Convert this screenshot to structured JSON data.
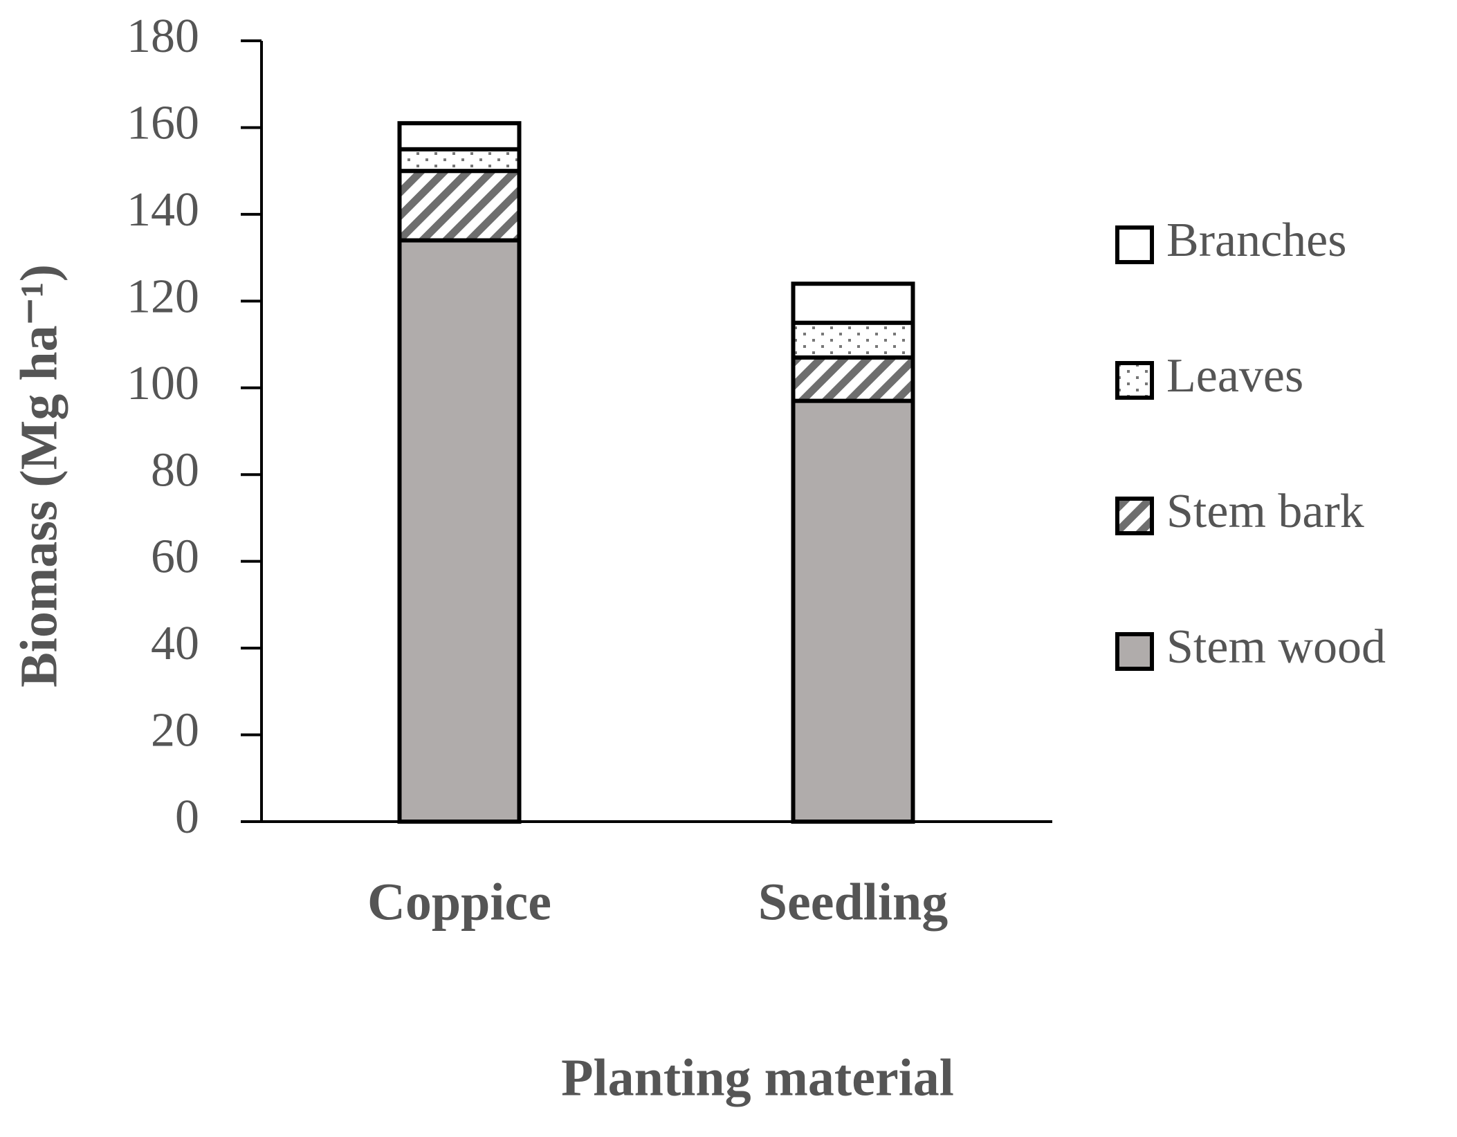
{
  "chart_data": {
    "type": "stacked-bar",
    "xlabel": "Planting material",
    "ylabel": "Biomass (Mg ha⁻¹)",
    "categories": [
      "Coppice",
      "Seedling"
    ],
    "series": [
      {
        "name": "Stem wood",
        "color": "#b0acab",
        "pattern": "solid",
        "values": [
          134,
          97
        ]
      },
      {
        "name": "Stem bark",
        "color": "#6e6e6e",
        "pattern": "hatch",
        "values": [
          16,
          10
        ]
      },
      {
        "name": "Leaves",
        "color": "#777777",
        "pattern": "dots",
        "values": [
          5,
          8
        ]
      },
      {
        "name": "Branches",
        "color": "#ffffff",
        "pattern": "solid",
        "values": [
          6,
          9
        ]
      }
    ],
    "ylim": [
      0,
      180
    ],
    "yticks": [
      0,
      20,
      40,
      60,
      80,
      100,
      120,
      140,
      160,
      180
    ],
    "legend": "right"
  }
}
